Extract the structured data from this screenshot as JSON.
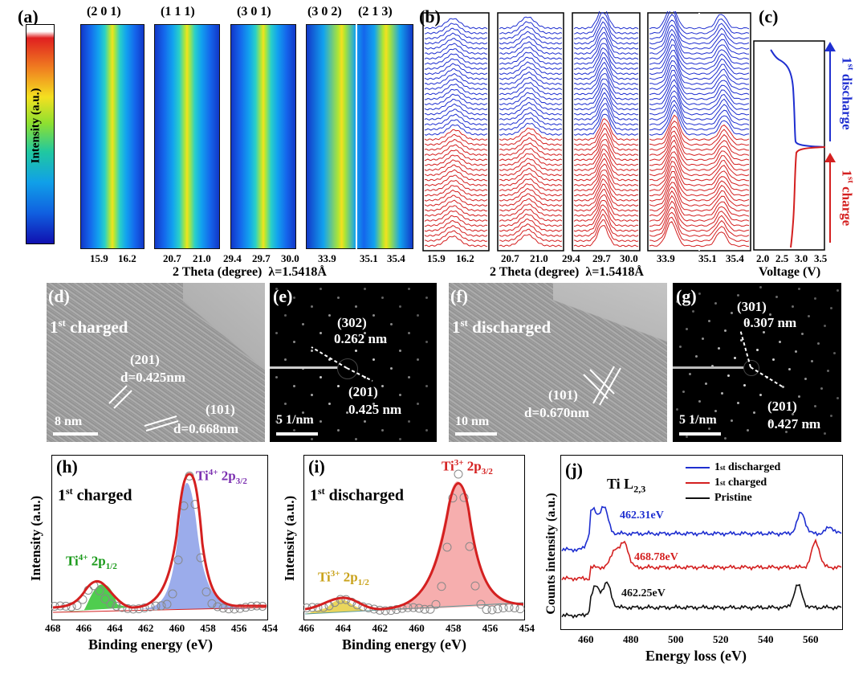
{
  "panels": {
    "a": {
      "label": "(a)",
      "colorbar_label": "Intensity (a.u.)",
      "hkl": [
        "(2 0 1)",
        "(1 1 1)",
        "(3 0 1)",
        "(3 0 2)",
        "(2 1 3)"
      ],
      "ticks": [
        [
          "15.9",
          "16.2"
        ],
        [
          "20.7",
          "21.0"
        ],
        [
          "29.4",
          "29.7",
          "30.0"
        ],
        [
          "33.9"
        ],
        [
          "35.1",
          "35.4"
        ]
      ],
      "xlabel": "2 Theta (degree)",
      "wavelength": "λ=1.5418Å"
    },
    "b": {
      "label": "(b)",
      "ticks": [
        [
          "15.9",
          "16.2"
        ],
        [
          "20.7",
          "21.0"
        ],
        [
          "29.4",
          "29.7",
          "30.0"
        ],
        [
          "33.9"
        ],
        [
          "35.1",
          "35.4"
        ]
      ],
      "xlabel": "2 Theta (degree)",
      "wavelength": "λ=1.5418Å"
    },
    "c": {
      "label": "(c)",
      "xlabel": "Voltage (V)",
      "ticks": [
        "2.0",
        "2.5",
        "3.0",
        "3.5"
      ],
      "discharge_sup": "st",
      "discharge_num": "1",
      "discharge_word": "discharge",
      "charge_num": "1",
      "charge_sup": "st",
      "charge_word": "charge"
    },
    "d": {
      "label": "(d)",
      "state_num": "1",
      "state_sup": "st",
      "state_word": "charged",
      "plane1": "(201)",
      "d1": "d=0.425nm",
      "plane2": "(101)",
      "d2": "d=0.668nm",
      "scale": "8 nm"
    },
    "e": {
      "label": "(e)",
      "plane1": "(302)",
      "d1": "0.262 nm",
      "plane2": "(201)",
      "d2": "0.425 nm",
      "scale": "5 1/nm"
    },
    "f": {
      "label": "(f)",
      "state_num": "1",
      "state_sup": "st",
      "state_word": "discharged",
      "plane1": "(101)",
      "d1": "d=0.670nm",
      "scale": "10 nm"
    },
    "g": {
      "label": "(g)",
      "plane1": "(301)",
      "d1": "0.307 nm",
      "plane2": "(201)",
      "d2": "0.427 nm",
      "scale": "5 1/nm"
    },
    "h": {
      "label": "(h)",
      "state_num": "1",
      "state_sup": "st",
      "state_word": "charged",
      "ylabel": "Intensity (a.u.)",
      "xlabel": "Binding energy (eV)",
      "peak_main_ion": "Ti",
      "peak_main_charge": "4+",
      "peak_main_orb": "2p",
      "peak_main_sub": "3/2",
      "peak_minor_ion": "Ti",
      "peak_minor_charge": "4+",
      "peak_minor_orb": "2p",
      "peak_minor_sub": "1/2",
      "ticks": [
        "468",
        "466",
        "464",
        "462",
        "460",
        "458",
        "456",
        "454"
      ]
    },
    "i": {
      "label": "(i)",
      "state_num": "1",
      "state_sup": "st",
      "state_word": "discharged",
      "ylabel": "Intensity (a.u.)",
      "xlabel": "Binding energy (eV)",
      "peak_main_ion": "Ti",
      "peak_main_charge": "3+",
      "peak_main_orb": "2p",
      "peak_main_sub": "3/2",
      "peak_minor_ion": "Ti",
      "peak_minor_charge": "3+",
      "peak_minor_orb": "2p",
      "peak_minor_sub": "1/2",
      "ticks": [
        "466",
        "464",
        "462",
        "460",
        "458",
        "456",
        "454"
      ]
    },
    "j": {
      "label": "(j)",
      "edge": "Ti L",
      "edge_sub": "2,3",
      "ylabel": "Counts intensity (a.u.)",
      "xlabel": "Energy loss (eV)",
      "ticks": [
        "460",
        "480",
        "500",
        "520",
        "540",
        "560"
      ],
      "legend": [
        {
          "num": "1",
          "sup": "st",
          "text": "discharged",
          "color": "#1f2fd0"
        },
        {
          "num": "1",
          "sup": "st",
          "text": "charged",
          "color": "#d42020"
        },
        {
          "num": "",
          "sup": "",
          "text": "Pristine",
          "color": "#111111"
        }
      ],
      "ann_discharged": "462.31eV",
      "ann_charged": "468.78eV",
      "ann_pristine": "462.25eV"
    }
  },
  "colors": {
    "discharge": "#1f2fd0",
    "charge": "#d42020",
    "fit": "#d42020",
    "ti4_32": "#7b2fb0",
    "ti4_12": "#1a9a1a",
    "ti3_32": "#d42020",
    "ti3_12": "#c9a21a"
  }
}
